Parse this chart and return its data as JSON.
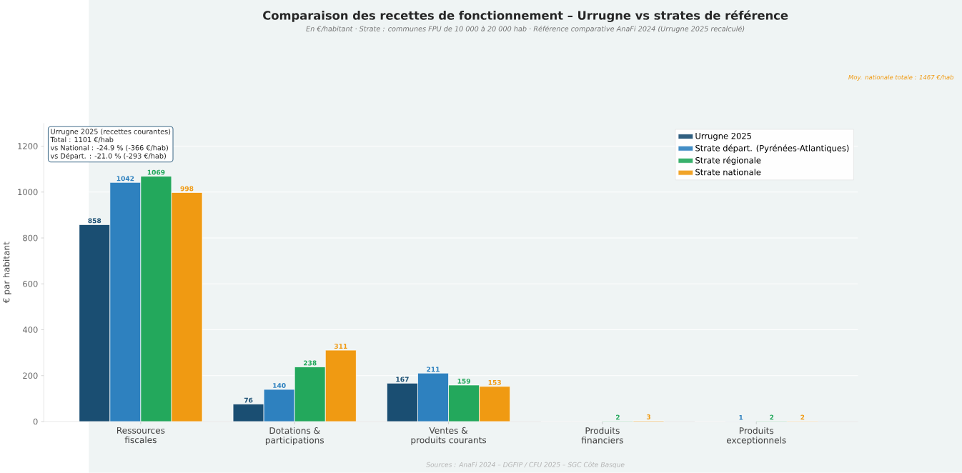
{
  "chart_data": {
    "type": "bar",
    "title": "Comparaison des recettes de fonctionnement – Urrugne vs strates de référence",
    "subtitle": "En €/habitant · Strate : communes FPU de 10 000 à 20 000 hab · Référence comparative AnaFi 2024 (Urrugne 2025 recalculé)",
    "ylabel": "€ par habitant",
    "categories": [
      "Ressources\nfiscales",
      "Dotations &\nparticipations",
      "Ventes &\nproduits courants",
      "Produits\nfinanciers",
      "Produits\nexceptionnels"
    ],
    "series": [
      {
        "name": "Urrugne 2025",
        "color": "#1a4e72",
        "values": [
          858,
          76,
          167,
          0,
          0
        ],
        "value_labels": [
          "858",
          "76",
          "167",
          null,
          null
        ]
      },
      {
        "name": "Strate départ. (Pyrénées-Atlantiques)",
        "color": "#2e81bf",
        "values": [
          1042,
          140,
          211,
          0,
          1
        ],
        "value_labels": [
          "1042",
          "140",
          "211",
          null,
          "1"
        ]
      },
      {
        "name": "Strate régionale",
        "color": "#23a85c",
        "values": [
          1069,
          238,
          159,
          2,
          2
        ],
        "value_labels": [
          "1069",
          "238",
          "159",
          "2",
          "2"
        ]
      },
      {
        "name": "Strate nationale",
        "color": "#f09a12",
        "values": [
          998,
          311,
          153,
          3,
          2
        ],
        "value_labels": [
          "998",
          "311",
          "153",
          "3",
          "2"
        ]
      }
    ],
    "ylim": [
      0,
      1300
    ],
    "yticks": [
      0,
      200,
      400,
      600,
      800,
      1000,
      1200
    ],
    "grid": "y",
    "legend": "top right",
    "annotations": [
      "Urrugne 2025 (recettes courantes)",
      "Total : 1101 €/hab",
      "vs National : -24.9 %  (-366 €/hab)",
      "vs Départ.  : -21.0 %  (-293 €/hab)",
      "Moy. nationale totale : 1467 €/hab",
      "Sources : AnaFi 2024 – DGFIP / CFU 2025 – SGC Côte Basque"
    ]
  }
}
